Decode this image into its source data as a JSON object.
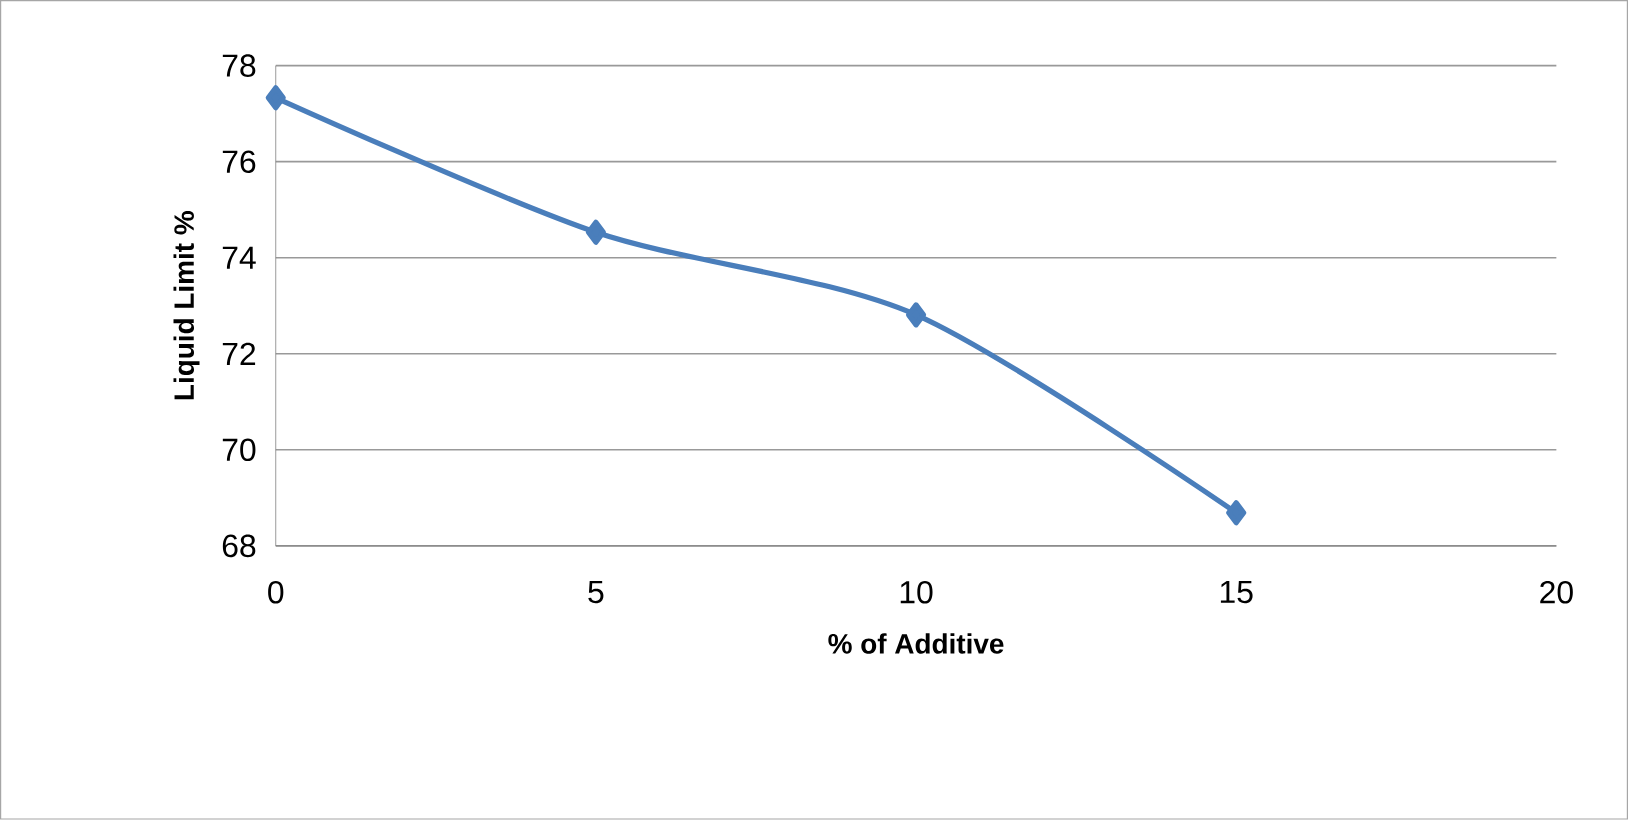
{
  "chart_data": {
    "type": "line",
    "xlabel": "% of Additive",
    "ylabel": "Liquid Limit %",
    "x": [
      0,
      5,
      10,
      15
    ],
    "series": [
      {
        "color": "#4a7ebb",
        "values": [
          77.33,
          74.53,
          72.81,
          68.69
        ]
      }
    ],
    "xlim": [
      0,
      20
    ],
    "xticks": [
      0,
      5,
      10,
      15,
      20
    ],
    "ylim": [
      68,
      78
    ],
    "yticks": [
      68,
      70,
      72,
      74,
      76,
      78
    ],
    "grid": "y",
    "marker": "diamond",
    "line_style": "solid"
  }
}
